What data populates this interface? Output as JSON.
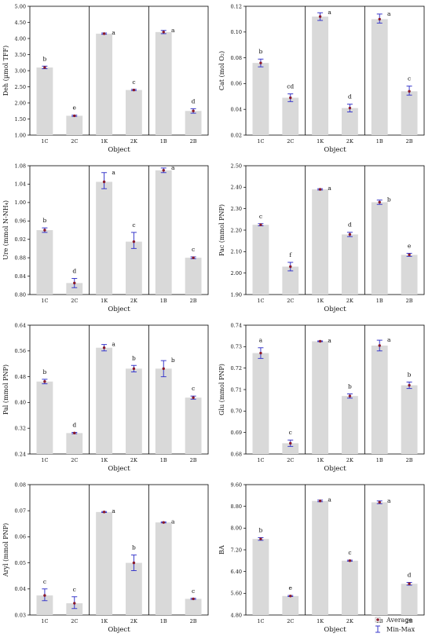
{
  "chart_data": [
    {
      "type": "bar",
      "categories": [
        "1C",
        "2C",
        "1K",
        "2K",
        "1B",
        "2B"
      ],
      "values": [
        3.1,
        1.6,
        4.15,
        2.4,
        4.2,
        1.75
      ],
      "min": [
        3.06,
        1.58,
        4.13,
        2.38,
        4.15,
        1.68
      ],
      "max": [
        3.14,
        1.62,
        4.17,
        2.42,
        4.25,
        1.82
      ],
      "letters": [
        "b",
        "e",
        "a",
        "c",
        "a",
        "d"
      ],
      "ylabel": "Deh (µmol TFF)",
      "xlabel": "Object",
      "ylim": [
        1.0,
        5.0
      ],
      "yticks": [
        "1.00",
        "1.50",
        "2.00",
        "2.50",
        "3.00",
        "3.50",
        "4.00",
        "4.50",
        "5.00"
      ]
    },
    {
      "type": "bar",
      "categories": [
        "1C",
        "2C",
        "1K",
        "2K",
        "1B",
        "2B"
      ],
      "values": [
        0.076,
        0.049,
        0.112,
        0.041,
        0.11,
        0.054
      ],
      "min": [
        0.073,
        0.046,
        0.109,
        0.038,
        0.107,
        0.051
      ],
      "max": [
        0.079,
        0.052,
        0.115,
        0.044,
        0.114,
        0.058
      ],
      "letters": [
        "b",
        "cd",
        "a",
        "d",
        "a",
        "c"
      ],
      "ylabel": "Cat (mol O₂)",
      "xlabel": "Object",
      "ylim": [
        0.02,
        0.12
      ],
      "yticks": [
        "0.02",
        "0.04",
        "0.06",
        "0.08",
        "0.10",
        "0.12"
      ]
    },
    {
      "type": "bar",
      "categories": [
        "1C",
        "2C",
        "1K",
        "2K",
        "1B",
        "2B"
      ],
      "values": [
        0.94,
        0.825,
        1.045,
        0.915,
        1.07,
        0.88
      ],
      "min": [
        0.935,
        0.815,
        1.03,
        0.9,
        1.065,
        0.878
      ],
      "max": [
        0.945,
        0.835,
        1.065,
        0.935,
        1.075,
        0.882
      ],
      "letters": [
        "b",
        "d",
        "a",
        "c",
        "a",
        "c"
      ],
      "ylabel": "Ure (mmol N-NH₄)",
      "xlabel": "Object",
      "ylim": [
        0.8,
        1.08
      ],
      "yticks": [
        "0.80",
        "0.84",
        "0.88",
        "0.92",
        "0.96",
        "1.00",
        "1.04",
        "1.08"
      ]
    },
    {
      "type": "bar",
      "categories": [
        "1C",
        "2C",
        "1K",
        "2K",
        "1B",
        "2B"
      ],
      "values": [
        2.225,
        2.03,
        2.39,
        2.18,
        2.33,
        2.085
      ],
      "min": [
        2.22,
        2.01,
        2.387,
        2.17,
        2.32,
        2.078
      ],
      "max": [
        2.23,
        2.05,
        2.393,
        2.19,
        2.34,
        2.092
      ],
      "letters": [
        "c",
        "f",
        "a",
        "d",
        "b",
        "e"
      ],
      "ylabel": "Pac (mmol PNP)",
      "xlabel": "Object",
      "ylim": [
        1.9,
        2.5
      ],
      "yticks": [
        "1.90",
        "2.00",
        "2.10",
        "2.20",
        "2.30",
        "2.40",
        "2.50"
      ]
    },
    {
      "type": "bar",
      "categories": [
        "1C",
        "2C",
        "1K",
        "2K",
        "1B",
        "2B"
      ],
      "values": [
        0.465,
        0.305,
        0.57,
        0.505,
        0.505,
        0.415
      ],
      "min": [
        0.458,
        0.303,
        0.56,
        0.495,
        0.48,
        0.41
      ],
      "max": [
        0.472,
        0.307,
        0.58,
        0.515,
        0.53,
        0.42
      ],
      "letters": [
        "b",
        "d",
        "a",
        "b",
        "b",
        "c"
      ],
      "ylabel": "Pal (mmol PNP)",
      "xlabel": "Object",
      "ylim": [
        0.24,
        0.64
      ],
      "yticks": [
        "0.24",
        "0.32",
        "0.40",
        "0.48",
        "0.56",
        "0.64"
      ]
    },
    {
      "type": "bar",
      "categories": [
        "1C",
        "2C",
        "1K",
        "2K",
        "1B",
        "2B"
      ],
      "values": [
        0.727,
        0.685,
        0.7325,
        0.707,
        0.7305,
        0.712
      ],
      "min": [
        0.7245,
        0.6835,
        0.7323,
        0.706,
        0.728,
        0.7105
      ],
      "max": [
        0.7295,
        0.6865,
        0.7327,
        0.708,
        0.733,
        0.7135
      ],
      "letters": [
        "a",
        "c",
        "a",
        "b",
        "a",
        "b"
      ],
      "ylabel": "Glu (mmol PNP)",
      "xlabel": "Object",
      "ylim": [
        0.68,
        0.74
      ],
      "yticks": [
        "0.68",
        "0.69",
        "0.70",
        "0.71",
        "0.72",
        "0.73",
        "0.74"
      ]
    },
    {
      "type": "bar",
      "categories": [
        "1C",
        "2C",
        "1K",
        "2K",
        "1B",
        "2B"
      ],
      "values": [
        0.0375,
        0.0345,
        0.0695,
        0.05,
        0.0655,
        0.0362
      ],
      "min": [
        0.0355,
        0.0325,
        0.0693,
        0.047,
        0.0653,
        0.036
      ],
      "max": [
        0.04,
        0.037,
        0.0697,
        0.053,
        0.0657,
        0.0364
      ],
      "letters": [
        "c",
        "c",
        "a",
        "b",
        "a",
        "c"
      ],
      "ylabel": "Aryl (mmol PNP)",
      "xlabel": "Object",
      "ylim": [
        0.03,
        0.08
      ],
      "yticks": [
        "0.03",
        "0.04",
        "0.05",
        "0.06",
        "0.07",
        "0.08"
      ]
    },
    {
      "type": "bar",
      "categories": [
        "1C",
        "2C",
        "1K",
        "2K",
        "1B",
        "2B"
      ],
      "values": [
        7.6,
        5.5,
        9.0,
        6.8,
        8.95,
        5.95
      ],
      "min": [
        7.55,
        5.48,
        8.97,
        6.78,
        8.9,
        5.9
      ],
      "max": [
        7.65,
        5.52,
        9.03,
        6.82,
        9.0,
        6.0
      ],
      "letters": [
        "b",
        "e",
        "a",
        "c",
        "a",
        "d"
      ],
      "ylabel": "BA",
      "xlabel": "Object",
      "ylim": [
        4.8,
        9.6
      ],
      "yticks": [
        "4.80",
        "5.60",
        "6.40",
        "7.20",
        "8.00",
        "8.80",
        "9.60"
      ]
    }
  ],
  "legend": {
    "average_label": "Average",
    "minmax_label": "Min-Max"
  },
  "colors": {
    "bar": "#d9d9d9",
    "point": "#8b1a2b",
    "whisker": "#3a3acb",
    "axis": "#000000"
  }
}
